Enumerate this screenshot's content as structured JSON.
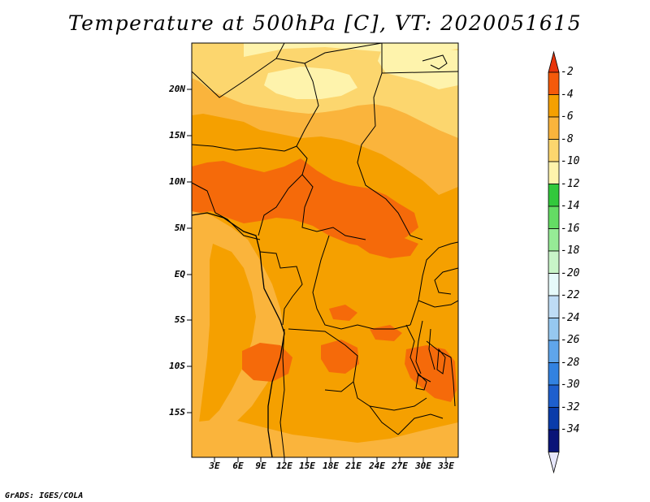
{
  "title": "Temperature at 500hPa [C], VT: 2020051615",
  "credit": "GrADS: IGES/COLA",
  "y_axis_labels": [
    "20N",
    "15N",
    "10N",
    "5N",
    "EQ",
    "5S",
    "10S",
    "15S"
  ],
  "x_axis_labels": [
    "3E",
    "6E",
    "9E",
    "12E",
    "15E",
    "18E",
    "21E",
    "24E",
    "27E",
    "30E",
    "33E"
  ],
  "colorbar": {
    "labels": [
      "-2",
      "-4",
      "-6",
      "-8",
      "-10",
      "-12",
      "-14",
      "-16",
      "-18",
      "-20",
      "-22",
      "-24",
      "-26",
      "-28",
      "-30",
      "-32",
      "-34"
    ],
    "colors": [
      "#e8340a",
      "#f55a0a",
      "#f5a000",
      "#fab43c",
      "#fcd66e",
      "#fef3ac",
      "#32c83c",
      "#64dc64",
      "#96eb96",
      "#c8f5c8",
      "#e6fafa",
      "#bedcf5",
      "#96c8f0",
      "#5fa5eb",
      "#3282e1",
      "#1e5fcd",
      "#0a3caa",
      "#0a1478",
      "#e6e6fa"
    ]
  },
  "map": {
    "lon_range": [
      0,
      34.5
    ],
    "lat_range": [
      -20,
      24.5
    ],
    "colors": {
      "base": "#f5a000",
      "warm": "#f56a0a",
      "cool": "#fab43c",
      "cooler": "#fcd66e",
      "coolest": "#fef3ac"
    }
  }
}
